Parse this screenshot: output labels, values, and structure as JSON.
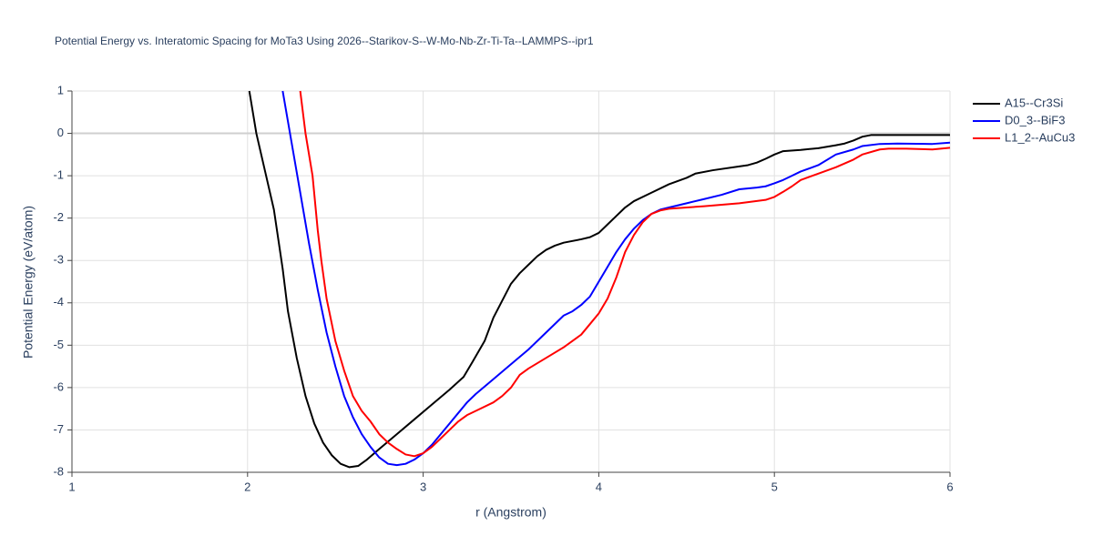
{
  "chart_data": {
    "type": "line",
    "title": "Potential Energy vs. Interatomic Spacing for MoTa3 Using 2026--Starikov-S--W-Mo-Nb-Zr-Ti-Ta--LAMMPS--ipr1",
    "x_label": "r (Angstrom)",
    "y_label": "Potential Energy (eV/atom)",
    "xlim": [
      1,
      6
    ],
    "xticks": [
      1,
      2,
      3,
      4,
      5,
      6
    ],
    "ylim": [
      -8,
      1
    ],
    "yticks": [
      -8,
      -7,
      -6,
      -5,
      -4,
      -3,
      -2,
      -1,
      0,
      1
    ],
    "grid": true,
    "legend": "top-right",
    "series": [
      {
        "name": "A15--Cr3Si",
        "color": "#000000",
        "x": [
          2.01,
          2.05,
          2.1,
          2.15,
          2.2,
          2.23,
          2.28,
          2.33,
          2.38,
          2.43,
          2.48,
          2.53,
          2.58,
          2.63,
          2.68,
          2.75,
          2.85,
          2.95,
          3.05,
          3.15,
          3.23,
          3.28,
          3.35,
          3.4,
          3.45,
          3.5,
          3.55,
          3.6,
          3.65,
          3.7,
          3.75,
          3.8,
          3.9,
          3.95,
          4.0,
          4.05,
          4.1,
          4.15,
          4.2,
          4.3,
          4.4,
          4.5,
          4.55,
          4.65,
          4.8,
          4.85,
          4.9,
          4.95,
          5.0,
          5.05,
          5.15,
          5.25,
          5.35,
          5.4,
          5.45,
          5.5,
          5.55,
          5.7,
          6.0
        ],
        "values": [
          1.0,
          0.0,
          -0.9,
          -1.8,
          -3.2,
          -4.2,
          -5.3,
          -6.2,
          -6.85,
          -7.3,
          -7.6,
          -7.8,
          -7.88,
          -7.85,
          -7.7,
          -7.45,
          -7.1,
          -6.75,
          -6.4,
          -6.05,
          -5.75,
          -5.4,
          -4.9,
          -4.35,
          -3.95,
          -3.55,
          -3.3,
          -3.1,
          -2.9,
          -2.75,
          -2.65,
          -2.58,
          -2.5,
          -2.45,
          -2.35,
          -2.15,
          -1.95,
          -1.75,
          -1.6,
          -1.4,
          -1.2,
          -1.05,
          -0.95,
          -0.87,
          -0.78,
          -0.75,
          -0.69,
          -0.6,
          -0.5,
          -0.42,
          -0.39,
          -0.35,
          -0.28,
          -0.24,
          -0.17,
          -0.08,
          -0.04,
          -0.04,
          -0.04
        ]
      },
      {
        "name": "D0_3--BiF3",
        "color": "#0000ff",
        "x": [
          2.2,
          2.25,
          2.3,
          2.35,
          2.4,
          2.45,
          2.5,
          2.55,
          2.6,
          2.65,
          2.7,
          2.75,
          2.8,
          2.85,
          2.9,
          2.95,
          3.0,
          3.05,
          3.1,
          3.15,
          3.2,
          3.25,
          3.3,
          3.4,
          3.5,
          3.6,
          3.7,
          3.8,
          3.85,
          3.9,
          3.95,
          4.0,
          4.05,
          4.1,
          4.15,
          4.2,
          4.25,
          4.3,
          4.35,
          4.4,
          4.5,
          4.6,
          4.7,
          4.8,
          4.9,
          4.95,
          5.0,
          5.05,
          5.1,
          5.15,
          5.25,
          5.35,
          5.45,
          5.5,
          5.6,
          5.7,
          5.9,
          6.0
        ],
        "values": [
          1.0,
          -0.2,
          -1.4,
          -2.6,
          -3.7,
          -4.7,
          -5.5,
          -6.2,
          -6.7,
          -7.1,
          -7.4,
          -7.65,
          -7.8,
          -7.83,
          -7.8,
          -7.7,
          -7.55,
          -7.35,
          -7.1,
          -6.85,
          -6.6,
          -6.35,
          -6.15,
          -5.8,
          -5.45,
          -5.1,
          -4.7,
          -4.3,
          -4.2,
          -4.05,
          -3.85,
          -3.5,
          -3.15,
          -2.8,
          -2.5,
          -2.25,
          -2.05,
          -1.9,
          -1.8,
          -1.75,
          -1.65,
          -1.55,
          -1.45,
          -1.32,
          -1.28,
          -1.25,
          -1.18,
          -1.1,
          -1.0,
          -0.9,
          -0.75,
          -0.5,
          -0.38,
          -0.3,
          -0.25,
          -0.24,
          -0.25,
          -0.22
        ]
      },
      {
        "name": "L1_2--AuCu3",
        "color": "#ff0000",
        "x": [
          2.3,
          2.33,
          2.37,
          2.4,
          2.42,
          2.45,
          2.5,
          2.55,
          2.6,
          2.65,
          2.7,
          2.75,
          2.8,
          2.85,
          2.9,
          2.95,
          3.0,
          3.05,
          3.1,
          3.15,
          3.2,
          3.25,
          3.3,
          3.4,
          3.45,
          3.5,
          3.55,
          3.6,
          3.7,
          3.8,
          3.9,
          3.95,
          4.0,
          4.05,
          4.1,
          4.15,
          4.2,
          4.25,
          4.3,
          4.35,
          4.4,
          4.6,
          4.8,
          4.95,
          5.0,
          5.05,
          5.1,
          5.15,
          5.25,
          5.35,
          5.45,
          5.5,
          5.6,
          5.65,
          5.75,
          5.9,
          6.0
        ],
        "values": [
          1.0,
          0.0,
          -1.0,
          -2.3,
          -3.0,
          -3.9,
          -4.9,
          -5.6,
          -6.2,
          -6.55,
          -6.8,
          -7.1,
          -7.3,
          -7.45,
          -7.58,
          -7.62,
          -7.55,
          -7.4,
          -7.2,
          -7.0,
          -6.8,
          -6.65,
          -6.55,
          -6.35,
          -6.2,
          -6.0,
          -5.7,
          -5.55,
          -5.3,
          -5.05,
          -4.75,
          -4.5,
          -4.25,
          -3.9,
          -3.4,
          -2.8,
          -2.4,
          -2.1,
          -1.9,
          -1.82,
          -1.78,
          -1.72,
          -1.65,
          -1.57,
          -1.5,
          -1.38,
          -1.25,
          -1.1,
          -0.95,
          -0.8,
          -0.62,
          -0.5,
          -0.38,
          -0.36,
          -0.36,
          -0.38,
          -0.34
        ]
      }
    ]
  }
}
